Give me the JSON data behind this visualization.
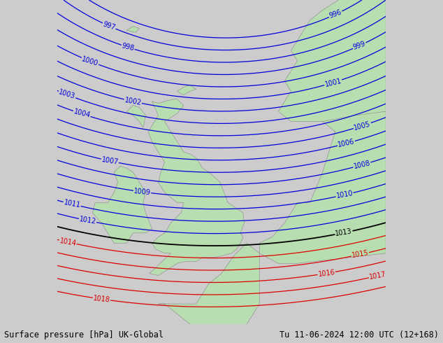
{
  "title_left": "Surface pressure [hPa] UK-Global",
  "title_right": "Tu 11-06-2024 12:00 UTC (12+168)",
  "background_color": "#cccccc",
  "land_color": "#b8ddb0",
  "sea_color": "#cccccc",
  "blue_contour_color": "#0000dd",
  "red_contour_color": "#dd0000",
  "black_contour_color": "#000000",
  "blue_levels": [
    996,
    997,
    998,
    999,
    1000,
    1001,
    1002,
    1003,
    1004,
    1005,
    1006,
    1007,
    1008,
    1009,
    1010,
    1011,
    1012
  ],
  "red_levels": [
    1014,
    1015,
    1016,
    1017,
    1018
  ],
  "black_levels": [
    1013
  ],
  "label_fontsize": 7,
  "title_fontsize": 8.5,
  "figsize": [
    6.34,
    4.9
  ],
  "dpi": 100,
  "lon_min": -13,
  "lon_max": 13,
  "lat_min": 47.5,
  "lat_max": 63.5,
  "low_lon": 1.0,
  "low_lat": 69.0,
  "low_pressure": 988,
  "gradient_scale": 1.6,
  "lon_gradient": 0.05,
  "lat_gradient": -0.4
}
